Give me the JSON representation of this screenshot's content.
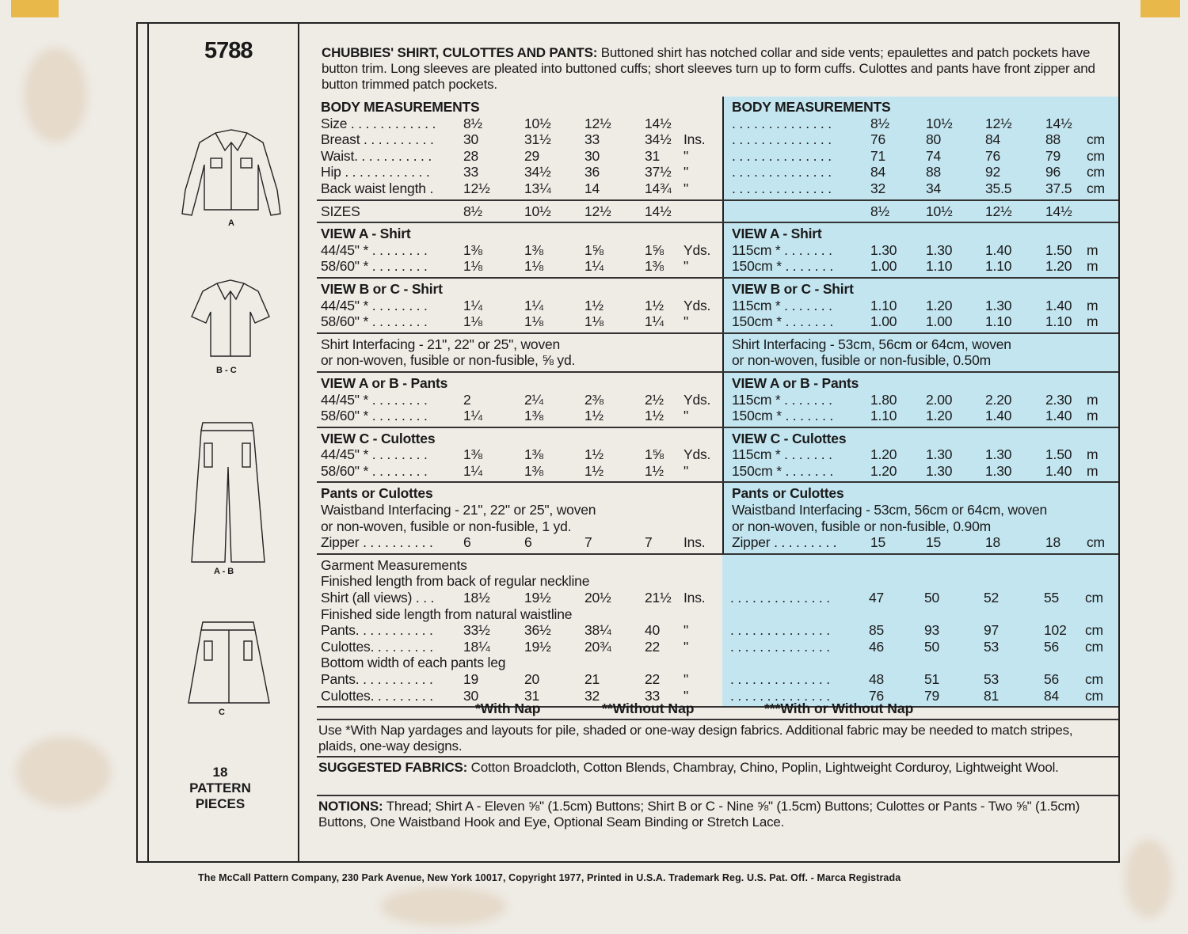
{
  "pattern_number": "5788",
  "views": [
    {
      "label": "A",
      "icon": "long-sleeve-shirt-drawing"
    },
    {
      "label": "B - C",
      "icon": "short-sleeve-shirt-drawing"
    },
    {
      "label": "A - B",
      "icon": "pants-drawing"
    },
    {
      "label": "C",
      "icon": "culottes-drawing"
    }
  ],
  "pattern_pieces": {
    "count": "18",
    "line1": "PATTERN",
    "line2": "PIECES"
  },
  "intro": {
    "title": "CHUBBIES' SHIRT, CULOTTES AND PANTS:",
    "text": "Buttoned shirt has notched collar and side vents; epaulettes and patch pockets have button trim. Long sleeves are pleated into buttoned cuffs; short sleeves turn up to form cuffs. Culottes and pants have front zipper and button trimmed patch pockets."
  },
  "sections": [
    {
      "id": "body",
      "rows": [
        {
          "imp": {
            "h": "BODY MEASUREMENTS"
          },
          "met": {
            "h": "BODY MEASUREMENTS"
          }
        },
        {
          "imp": {
            "l": "Size . . . . . . . . . . . .",
            "v": [
              "8½",
              "10½",
              "12½",
              "14½"
            ],
            "u": ""
          },
          "met": {
            "l": ". . . . . . . . . . . . . .",
            "v": [
              "8½",
              "10½",
              "12½",
              "14½"
            ],
            "u": ""
          }
        },
        {
          "imp": {
            "l": "Breast . . . . . . . . . .",
            "v": [
              "30",
              "31½",
              "33",
              "34½"
            ],
            "u": "Ins."
          },
          "met": {
            "l": ". . . . . . . . . . . . . .",
            "v": [
              "76",
              "80",
              "84",
              "88"
            ],
            "u": "cm"
          }
        },
        {
          "imp": {
            "l": "Waist. . . . . . . . . . .",
            "v": [
              "28",
              "29",
              "30",
              "31"
            ],
            "u": "\""
          },
          "met": {
            "l": ". . . . . . . . . . . . . .",
            "v": [
              "71",
              "74",
              "76",
              "79"
            ],
            "u": "cm"
          }
        },
        {
          "imp": {
            "l": "Hip . . . . . . . . . . . .",
            "v": [
              "33",
              "34½",
              "36",
              "37½"
            ],
            "u": "\""
          },
          "met": {
            "l": ". . . . . . . . . . . . . .",
            "v": [
              "84",
              "88",
              "92",
              "96"
            ],
            "u": "cm"
          }
        },
        {
          "imp": {
            "l": "Back waist length  .",
            "v": [
              "12½",
              "13¼",
              "14",
              "14¾"
            ],
            "u": "\""
          },
          "met": {
            "l": ". . . . . . . . . . . . . .",
            "v": [
              "32",
              "34",
              "35.5",
              "37.5"
            ],
            "u": "cm"
          }
        }
      ]
    },
    {
      "id": "sizes",
      "rows": [
        {
          "imp": {
            "l": "SIZES",
            "v": [
              "8½",
              "10½",
              "12½",
              "14½"
            ],
            "u": ""
          },
          "met": {
            "l": "",
            "v": [
              "8½",
              "10½",
              "12½",
              "14½"
            ],
            "u": ""
          }
        }
      ]
    },
    {
      "id": "view-a-shirt",
      "rows": [
        {
          "imp": {
            "h": "VIEW A - Shirt"
          },
          "met": {
            "h": "VIEW A - Shirt"
          }
        },
        {
          "imp": {
            "l": "44/45\" * . . . . . . . .",
            "v": [
              "1⅜",
              "1⅜",
              "1⅝",
              "1⅝"
            ],
            "u": "Yds."
          },
          "met": {
            "l": "115cm * . . . . . . .",
            "v": [
              "1.30",
              "1.30",
              "1.40",
              "1.50"
            ],
            "u": "m"
          }
        },
        {
          "imp": {
            "l": "58/60\" * . . . . . . . .",
            "v": [
              "1⅛",
              "1⅛",
              "1¼",
              "1⅜"
            ],
            "u": "\""
          },
          "met": {
            "l": "150cm * . . . . . . .",
            "v": [
              "1.00",
              "1.10",
              "1.10",
              "1.20"
            ],
            "u": "m"
          }
        }
      ]
    },
    {
      "id": "view-bc-shirt",
      "rows": [
        {
          "imp": {
            "h": "VIEW B or C - Shirt"
          },
          "met": {
            "h": "VIEW B or C - Shirt"
          }
        },
        {
          "imp": {
            "l": "44/45\" * . . . . . . . .",
            "v": [
              "1¼",
              "1¼",
              "1½",
              "1½"
            ],
            "u": "Yds."
          },
          "met": {
            "l": "115cm * . . . . . . .",
            "v": [
              "1.10",
              "1.20",
              "1.30",
              "1.40"
            ],
            "u": "m"
          }
        },
        {
          "imp": {
            "l": "58/60\" * . . . . . . . .",
            "v": [
              "1⅛",
              "1⅛",
              "1⅛",
              "1¼"
            ],
            "u": "\""
          },
          "met": {
            "l": "150cm * . . . . . . .",
            "v": [
              "1.00",
              "1.00",
              "1.10",
              "1.10"
            ],
            "u": "m"
          }
        }
      ]
    },
    {
      "id": "shirt-interfacing",
      "rows": [
        {
          "imp": {
            "t": "Shirt Interfacing - 21\", 22\" or 25\", woven"
          },
          "met": {
            "t": "Shirt Interfacing - 53cm, 56cm or 64cm, woven"
          }
        },
        {
          "imp": {
            "t": "or non-woven, fusible or non-fusible,  ⅝ yd."
          },
          "met": {
            "t": "or non-woven, fusible or non-fusible,  0.50m"
          }
        }
      ]
    },
    {
      "id": "view-ab-pants",
      "rows": [
        {
          "imp": {
            "h": "VIEW A or B - Pants"
          },
          "met": {
            "h": "VIEW A or B - Pants"
          }
        },
        {
          "imp": {
            "l": "44/45\" * . . . . . . . .",
            "v": [
              "2",
              "2¼",
              "2⅜",
              "2½"
            ],
            "u": "Yds."
          },
          "met": {
            "l": "115cm * . . . . . . .",
            "v": [
              "1.80",
              "2.00",
              "2.20",
              "2.30"
            ],
            "u": "m"
          }
        },
        {
          "imp": {
            "l": "58/60\" * . . . . . . . .",
            "v": [
              "1¼",
              "1⅜",
              "1½",
              "1½"
            ],
            "u": "\""
          },
          "met": {
            "l": "150cm * . . . . . . .",
            "v": [
              "1.10",
              "1.20",
              "1.40",
              "1.40"
            ],
            "u": "m"
          }
        }
      ]
    },
    {
      "id": "view-c-culottes",
      "rows": [
        {
          "imp": {
            "h": "VIEW C - Culottes"
          },
          "met": {
            "h": "VIEW C - Culottes"
          }
        },
        {
          "imp": {
            "l": "44/45\" * . . . . . . . .",
            "v": [
              "1⅜",
              "1⅜",
              "1½",
              "1⅝"
            ],
            "u": "Yds."
          },
          "met": {
            "l": "115cm * . . . . . . .",
            "v": [
              "1.20",
              "1.30",
              "1.30",
              "1.50"
            ],
            "u": "m"
          }
        },
        {
          "imp": {
            "l": "58/60\" * . . . . . . . .",
            "v": [
              "1¼",
              "1⅜",
              "1½",
              "1½"
            ],
            "u": "\""
          },
          "met": {
            "l": "150cm * . . . . . . .",
            "v": [
              "1.20",
              "1.30",
              "1.30",
              "1.40"
            ],
            "u": "m"
          }
        }
      ]
    },
    {
      "id": "pants-or-culottes",
      "rows": [
        {
          "imp": {
            "h": "Pants or Culottes"
          },
          "met": {
            "h": "Pants or Culottes"
          }
        },
        {
          "imp": {
            "t": "Waistband Interfacing - 21\", 22\" or 25\", woven"
          },
          "met": {
            "t": "Waistband Interfacing - 53cm, 56cm or 64cm, woven"
          }
        },
        {
          "imp": {
            "t": "or non-woven, fusible or non-fusible,  1 yd."
          },
          "met": {
            "t": "or non-woven, fusible or non-fusible,  0.90m"
          }
        },
        {
          "imp": {
            "l": "Zipper . . . . . . . . . .",
            "v": [
              "6",
              "6",
              "7",
              "7"
            ],
            "u": "Ins."
          },
          "met": {
            "l": "Zipper . . . . . . . . .",
            "v": [
              "15",
              "15",
              "18",
              "18"
            ],
            "u": "cm"
          }
        }
      ]
    },
    {
      "id": "garment",
      "rows": [
        {
          "imp": {
            "t": "Garment Measurements"
          },
          "met": {
            "t": ""
          }
        },
        {
          "imp": {
            "t": "Finished length from back of regular neckline"
          },
          "met": {
            "t": ""
          }
        },
        {
          "imp": {
            "l": "Shirt (all views) . . .",
            "v": [
              "18½",
              "19½",
              "20½",
              "21½"
            ],
            "u": "Ins."
          },
          "met": {
            "l": ". . . . . . . . . . . . . .",
            "v": [
              "47",
              "50",
              "52",
              "55"
            ],
            "u": "cm"
          }
        },
        {
          "imp": {
            "t": "Finished side length from natural waistline"
          },
          "met": {
            "t": ""
          }
        },
        {
          "imp": {
            "l": "Pants. . . . . . . . . . .",
            "v": [
              "33½",
              "36½",
              "38¼",
              "40"
            ],
            "u": "\""
          },
          "met": {
            "l": ". . . . . . . . . . . . . .",
            "v": [
              "85",
              "93",
              "97",
              "102"
            ],
            "u": "cm"
          }
        },
        {
          "imp": {
            "l": "Culottes. . . . . . . . .",
            "v": [
              "18¼",
              "19½",
              "20¾",
              "22"
            ],
            "u": "\""
          },
          "met": {
            "l": ". . . . . . . . . . . . . .",
            "v": [
              "46",
              "50",
              "53",
              "56"
            ],
            "u": "cm"
          }
        },
        {
          "imp": {
            "t": "Bottom width of each pants leg"
          },
          "met": {
            "t": ""
          }
        },
        {
          "imp": {
            "l": "Pants. . . . . . . . . . .",
            "v": [
              "19",
              "20",
              "21",
              "22"
            ],
            "u": "\""
          },
          "met": {
            "l": ". . . . . . . . . . . . . .",
            "v": [
              "48",
              "51",
              "53",
              "56"
            ],
            "u": "cm"
          }
        },
        {
          "imp": {
            "l": "Culottes. . . . . . . . .",
            "v": [
              "30",
              "31",
              "32",
              "33"
            ],
            "u": "\""
          },
          "met": {
            "l": ". . . . . . . . . . . . . .",
            "v": [
              "76",
              "79",
              "81",
              "84"
            ],
            "u": "cm"
          }
        }
      ]
    }
  ],
  "nap_legend": {
    "with": "*With Nap",
    "without": "**Without Nap",
    "either": "***With or Without Nap"
  },
  "nap_note": "Use *With Nap yardages and layouts for pile, shaded or one-way design fabrics. Additional fabric may be needed to match stripes, plaids, one-way designs.",
  "fabrics": {
    "label": "SUGGESTED FABRICS:",
    "text": "Cotton Broadcloth, Cotton Blends, Chambray, Chino, Poplin, Lightweight Corduroy, Lightweight Wool."
  },
  "notions": {
    "label": "NOTIONS:",
    "text": "Thread; Shirt A - Eleven ⅝\" (1.5cm) Buttons; Shirt B or C - Nine ⅝\" (1.5cm) Buttons; Culottes or Pants - Two ⅝\" (1.5cm) Buttons, One Waistband Hook and Eye, Optional Seam Binding or Stretch Lace."
  },
  "footer": "The McCall Pattern Company, 230 Park Avenue, New York 10017, Copyright 1977, Printed in U.S.A. Trademark Reg. U.S. Pat. Off. - Marca Registrada",
  "colors": {
    "metric_highlight": "#c3e5f0",
    "paper": "#efece6",
    "ink": "#1a1a1a",
    "stain": "#be8c50"
  }
}
